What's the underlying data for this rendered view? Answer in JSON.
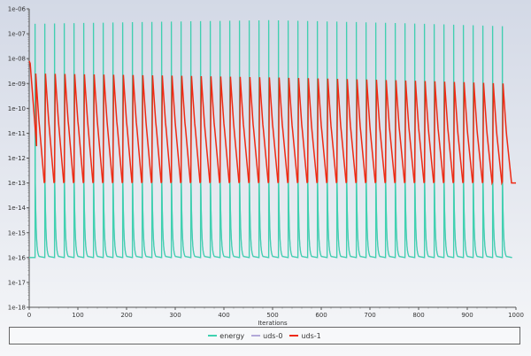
{
  "chart_data": {
    "type": "line",
    "title": "",
    "xlabel": "Iterations",
    "ylabel": "",
    "xlim": [
      0,
      1000
    ],
    "ylim_log10": [
      -18,
      -6
    ],
    "yscale": "log",
    "x_ticks": [
      "0",
      "100",
      "200",
      "300",
      "400",
      "500",
      "600",
      "700",
      "800",
      "900",
      "1000"
    ],
    "y_ticks": [
      "1e-06",
      "1e-07",
      "1e-08",
      "1e-09",
      "1e-10",
      "1e-11",
      "1e-12",
      "1e-13",
      "1e-14",
      "1e-15",
      "1e-16",
      "1e-17",
      "1e-18"
    ],
    "legend_position": "bottom",
    "cycle": {
      "first_spike_iteration": 12,
      "period": 20,
      "count": 49
    },
    "series": [
      {
        "name": "energy",
        "color": "#3fd1b0",
        "initial_value": 1e-16,
        "peak_values_start": 2.5e-07,
        "peak_values_mid": 3.5e-07,
        "peak_values_end": 2e-07,
        "trough_value": 1e-16,
        "knee_value": 1e-13
      },
      {
        "name": "uds-0",
        "color": "#b3a9d9",
        "note_hidden_under_others": true,
        "initial_value": 1e-16,
        "peak_values_start": 2.5e-07,
        "peak_values_end": 2e-07,
        "trough_value": 1e-16
      },
      {
        "name": "uds-1",
        "color": "#ee2a14",
        "initial_value": 8e-09,
        "first_trough": 3e-12,
        "peak_values_start": 2.5e-09,
        "peak_values_end": 1e-09,
        "trough_value": 1e-13,
        "final_value": 1e-13
      }
    ]
  }
}
